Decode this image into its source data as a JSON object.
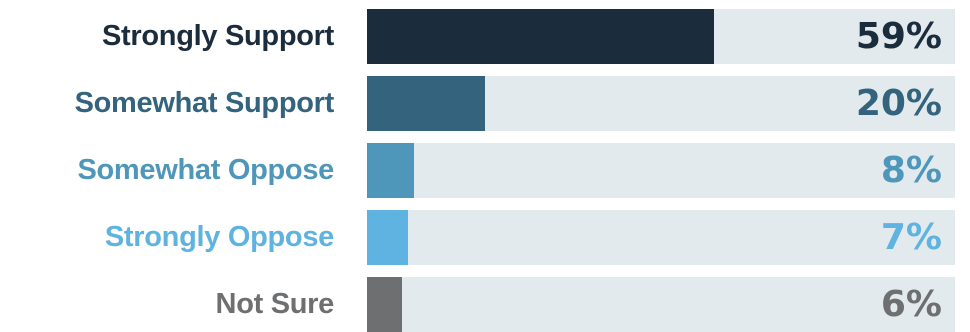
{
  "chart_data": {
    "type": "bar",
    "orientation": "horizontal",
    "categories": [
      "Strongly Support",
      "Somewhat Support",
      "Somewhat Oppose",
      "Strongly Oppose",
      "Not Sure"
    ],
    "values": [
      59,
      20,
      8,
      7,
      6
    ],
    "value_labels": [
      "59%",
      "20%",
      "8%",
      "7%",
      "6%"
    ],
    "colors": [
      "#1b2d3c",
      "#33637d",
      "#4f97ba",
      "#5fb3e0",
      "#6d6f71"
    ],
    "track_color": "#e3eaed",
    "xlim": [
      0,
      100
    ],
    "grid": false
  }
}
